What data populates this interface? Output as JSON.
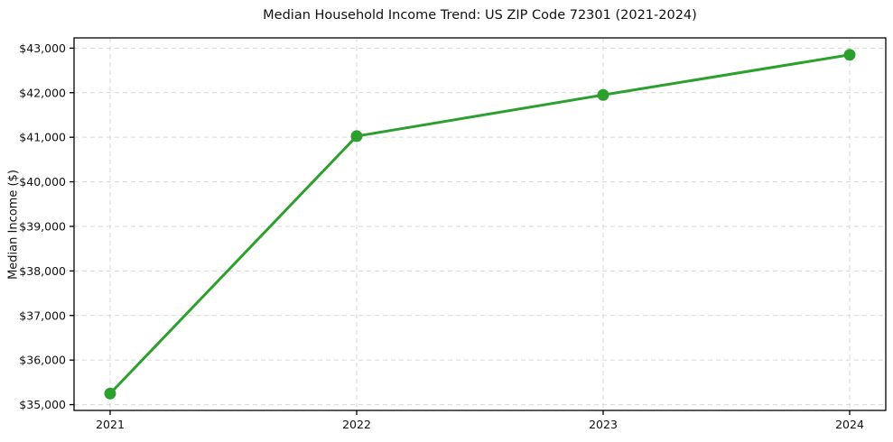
{
  "chart_data": {
    "type": "line",
    "title": "Median Household Income Trend: US ZIP Code 72301 (2021-2024)",
    "xlabel": "",
    "ylabel": "Median Income ($)",
    "categories": [
      "2021",
      "2022",
      "2023",
      "2024"
    ],
    "series": [
      {
        "name": "Median Household Income",
        "values": [
          35250,
          41025,
          41950,
          42850
        ]
      }
    ],
    "ylim": [
      34870,
      43230
    ],
    "yticks": [
      35000,
      36000,
      37000,
      38000,
      39000,
      40000,
      41000,
      42000,
      43000
    ],
    "ytick_labels": [
      "$35,000",
      "$36,000",
      "$37,000",
      "$38,000",
      "$39,000",
      "$40,000",
      "$41,000",
      "$42,000",
      "$43,000"
    ],
    "grid": true,
    "grid_style": "dashed",
    "legend": "none",
    "line_color": "#2ca02c",
    "marker": "circle",
    "background_color": "#ffffff",
    "axis_color": "#000000",
    "grid_color": "#d7d7d7"
  }
}
